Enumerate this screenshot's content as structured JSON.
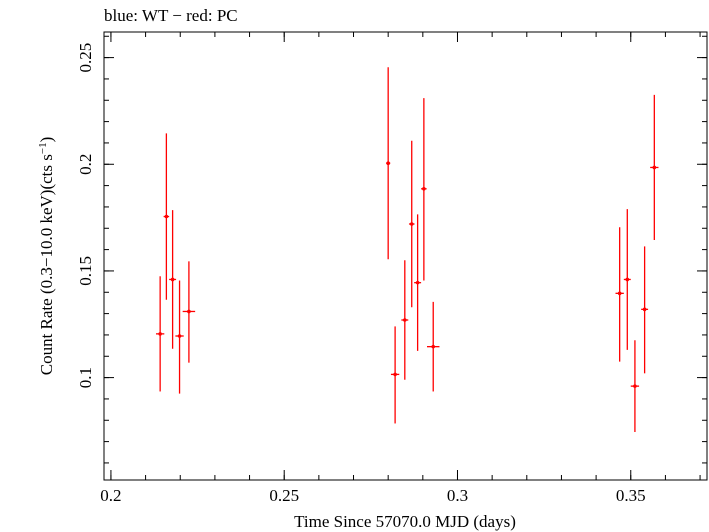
{
  "chart_data": {
    "type": "scatter",
    "title": "blue: WT − red: PC",
    "xlabel": "Time Since 57070.0 MJD (days)",
    "ylabel_main": "Count Rate (0.3−10.0 keV)(cts s",
    "ylabel_sup": "−1",
    "ylabel_close": ")",
    "xlim": [
      0.198,
      0.372
    ],
    "ylim": [
      0.052,
      0.262
    ],
    "x_ticks": [
      {
        "value": 0.2,
        "label": "0.2"
      },
      {
        "value": 0.25,
        "label": "0.25"
      },
      {
        "value": 0.3,
        "label": "0.3"
      },
      {
        "value": 0.35,
        "label": "0.35"
      }
    ],
    "y_ticks": [
      {
        "value": 0.1,
        "label": "0.1"
      },
      {
        "value": 0.15,
        "label": "0.15"
      },
      {
        "value": 0.2,
        "label": "0.2"
      },
      {
        "value": 0.25,
        "label": "0.25"
      }
    ],
    "x_minor_step": 0.01,
    "y_minor_step": 0.01,
    "grid": false,
    "series": [
      {
        "name": "PC",
        "color": "#ff0000",
        "points": [
          {
            "x": 0.2142,
            "y": 0.1205,
            "xerr": 0.0012,
            "ylo": 0.0935,
            "yhi": 0.1475
          },
          {
            "x": 0.216,
            "y": 0.1755,
            "xerr": 0.0008,
            "ylo": 0.1365,
            "yhi": 0.2145
          },
          {
            "x": 0.2178,
            "y": 0.146,
            "xerr": 0.001,
            "ylo": 0.1135,
            "yhi": 0.1785
          },
          {
            "x": 0.2198,
            "y": 0.1195,
            "xerr": 0.0012,
            "ylo": 0.0925,
            "yhi": 0.1455
          },
          {
            "x": 0.2225,
            "y": 0.131,
            "xerr": 0.0018,
            "ylo": 0.107,
            "yhi": 0.1545
          },
          {
            "x": 0.28,
            "y": 0.2005,
            "xerr": 0.0006,
            "ylo": 0.1555,
            "yhi": 0.2455
          },
          {
            "x": 0.282,
            "y": 0.1015,
            "xerr": 0.0012,
            "ylo": 0.0785,
            "yhi": 0.124
          },
          {
            "x": 0.2848,
            "y": 0.127,
            "xerr": 0.001,
            "ylo": 0.099,
            "yhi": 0.155
          },
          {
            "x": 0.2868,
            "y": 0.172,
            "xerr": 0.0008,
            "ylo": 0.133,
            "yhi": 0.211
          },
          {
            "x": 0.2885,
            "y": 0.1445,
            "xerr": 0.001,
            "ylo": 0.1125,
            "yhi": 0.1765
          },
          {
            "x": 0.2903,
            "y": 0.1885,
            "xerr": 0.0008,
            "ylo": 0.1455,
            "yhi": 0.231
          },
          {
            "x": 0.293,
            "y": 0.1145,
            "xerr": 0.0018,
            "ylo": 0.0935,
            "yhi": 0.1355
          },
          {
            "x": 0.3468,
            "y": 0.1395,
            "xerr": 0.0012,
            "ylo": 0.1075,
            "yhi": 0.1705
          },
          {
            "x": 0.349,
            "y": 0.146,
            "xerr": 0.001,
            "ylo": 0.113,
            "yhi": 0.179
          },
          {
            "x": 0.3512,
            "y": 0.096,
            "xerr": 0.0012,
            "ylo": 0.0745,
            "yhi": 0.1175
          },
          {
            "x": 0.354,
            "y": 0.132,
            "xerr": 0.001,
            "ylo": 0.102,
            "yhi": 0.1615
          },
          {
            "x": 0.3568,
            "y": 0.1985,
            "xerr": 0.0012,
            "ylo": 0.1645,
            "yhi": 0.2325
          }
        ]
      }
    ]
  }
}
